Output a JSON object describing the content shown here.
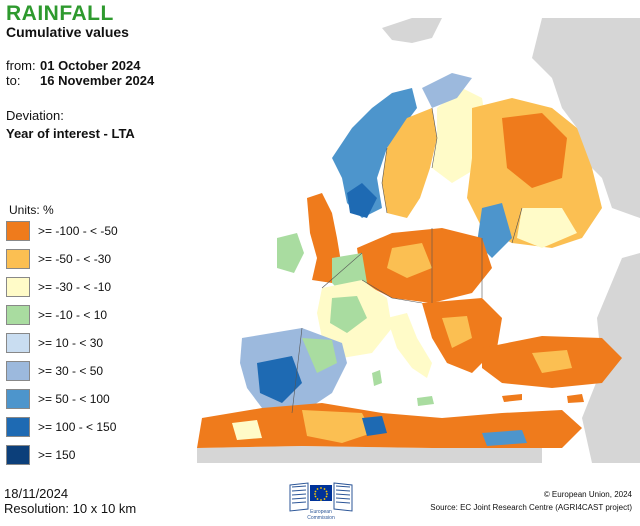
{
  "header": {
    "title": "RAINFALL",
    "subtitle": "Cumulative values",
    "from_label": "from:",
    "from_value": "01 October 2024",
    "to_label": "to:",
    "to_value": "16 November 2024",
    "deviation_label": "Deviation:",
    "deviation_value": "Year of interest - LTA"
  },
  "legend": {
    "units": "Units: %",
    "items": [
      {
        "label": ">= -100 - < -50",
        "color": "#ef7b1c"
      },
      {
        "label": ">= -50 - < -30",
        "color": "#fbbf52"
      },
      {
        "label": ">= -30 - < -10",
        "color": "#fffbc8"
      },
      {
        "label": ">= -10 - < 10",
        "color": "#a9dca0"
      },
      {
        "label": ">= 10 - < 30",
        "color": "#c9ddf1"
      },
      {
        "label": ">= 30 - < 50",
        "color": "#9cb9dd"
      },
      {
        "label": ">= 50 - < 100",
        "color": "#4d95cc"
      },
      {
        "label": ">= 100 - < 150",
        "color": "#1e6ab3"
      },
      {
        "label": ">= 150",
        "color": "#0c3f7a"
      }
    ]
  },
  "footer": {
    "date": "18/11/2024",
    "resolution": "Resolution: 10 x 10 km",
    "copyright": "© European Union, 2024",
    "source": "Source: EC Joint Research Centre (AGRI4CAST project)",
    "logo_line1": "European",
    "logo_line2": "Commission"
  },
  "map": {
    "land_no_data_color": "#d6d6d6",
    "sea_color": "#ffffff",
    "border_color": "#555555"
  }
}
